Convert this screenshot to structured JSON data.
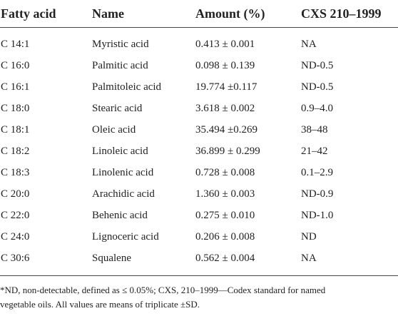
{
  "table": {
    "headers": [
      "Fatty acid",
      "Name",
      "Amount (%)",
      "CXS 210–1999"
    ],
    "rows": [
      [
        "C 14:1",
        "Myristic acid",
        "0.413 ± 0.001",
        "NA"
      ],
      [
        "C 16:0",
        "Palmitic acid",
        "0.098 ± 0.139",
        "ND-0.5"
      ],
      [
        "C 16:1",
        "Palmitoleic acid",
        "19.774 ±0.117",
        "ND-0.5"
      ],
      [
        "C 18:0",
        "Stearic acid",
        "3.618 ± 0.002",
        "0.9–4.0"
      ],
      [
        "C 18:1",
        "Oleic acid",
        "35.494 ±0.269",
        "38–48"
      ],
      [
        "C 18:2",
        "Linoleic acid",
        "36.899 ± 0.299",
        "21–42"
      ],
      [
        "C 18:3",
        "Linolenic acid",
        "0.728 ± 0.008",
        "0.1–2.9"
      ],
      [
        "C 20:0",
        "Arachidic acid",
        "1.360 ± 0.003",
        "ND-0.9"
      ],
      [
        "C 22:0",
        "Behenic acid",
        "0.275 ± 0.010",
        "ND-1.0"
      ],
      [
        "C 24:0",
        "Lignoceric acid",
        "0.206 ± 0.008",
        "ND"
      ],
      [
        "C 30:6",
        "Squalene",
        "0.562 ± 0.004",
        "NA"
      ]
    ]
  },
  "footnote": {
    "line1": "*ND, non-detectable, defined as ≤ 0.05%; CXS, 210–1999—Codex standard for named",
    "line2": "vegetable oils. All values are means of triplicate ±SD."
  }
}
